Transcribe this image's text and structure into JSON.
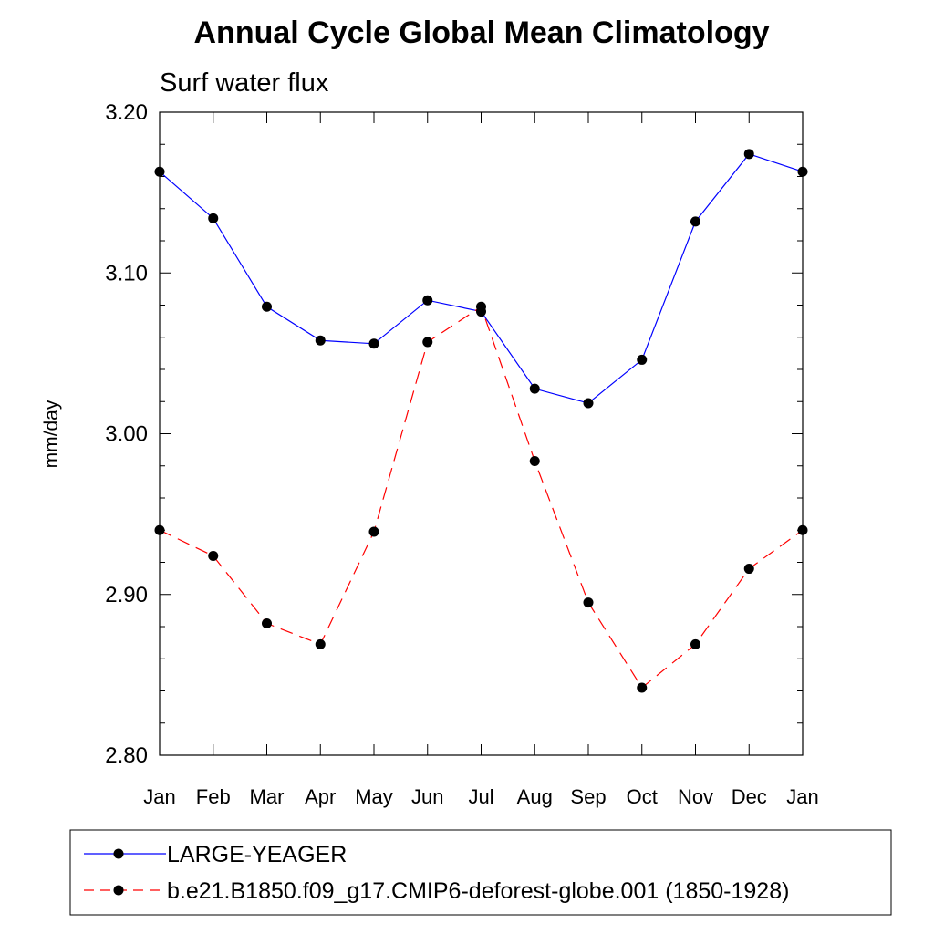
{
  "chart_data": {
    "type": "line",
    "title": "Annual Cycle Global Mean Climatology",
    "subtitle": "Surf water flux",
    "ylabel": "mm/day",
    "xlabel": "",
    "categories": [
      "Jan",
      "Feb",
      "Mar",
      "Apr",
      "May",
      "Jun",
      "Jul",
      "Aug",
      "Sep",
      "Oct",
      "Nov",
      "Dec",
      "Jan"
    ],
    "ylim": [
      2.8,
      3.2
    ],
    "yticks": [
      "2.80",
      "2.90",
      "3.00",
      "3.10",
      "3.20"
    ],
    "grid": false,
    "legend_position": "bottom",
    "series": [
      {
        "name": "LARGE-YEAGER",
        "color": "#0000ff",
        "line_style": "solid",
        "marker": "filled-circle",
        "values": [
          3.163,
          3.134,
          3.079,
          3.058,
          3.056,
          3.083,
          3.076,
          3.028,
          3.019,
          3.046,
          3.132,
          3.174,
          3.163
        ]
      },
      {
        "name": "b.e21.B1850.f09_g17.CMIP6-deforest-globe.001 (1850-1928)",
        "color": "#ff0000",
        "line_style": "dashed",
        "marker": "filled-circle",
        "values": [
          2.94,
          2.924,
          2.882,
          2.869,
          2.939,
          3.057,
          3.079,
          2.983,
          2.895,
          2.842,
          2.869,
          2.916,
          2.94
        ]
      }
    ]
  }
}
